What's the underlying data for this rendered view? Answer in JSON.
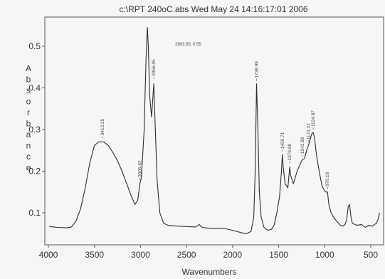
{
  "chart_data": {
    "type": "line",
    "title": "c:\\RPT 240oC.abs   Wed May 24 14:16:17:01 2006",
    "xlabel": "Wavenumbers",
    "ylabel": "Absorbance",
    "xlim": [
      4000,
      400
    ],
    "ylim": [
      0.04,
      0.56
    ],
    "x_ticks": [
      4000,
      3500,
      3000,
      2500,
      2000,
      1500,
      1000,
      500
    ],
    "y_ticks": [
      0.1,
      0.2,
      0.3,
      0.4,
      0.5
    ],
    "cursor_readout": "2903.55, 0.55",
    "peak_labels": [
      {
        "x": 3413.25,
        "y": 0.272,
        "label": "3413.25"
      },
      {
        "x": 3005.62,
        "y": 0.172,
        "label": "3005.62"
      },
      {
        "x": 2856.05,
        "y": 0.415,
        "label": "2856.05"
      },
      {
        "x": 1738.99,
        "y": 0.41,
        "label": "1738.99"
      },
      {
        "x": 1459.71,
        "y": 0.24,
        "label": "1459.71"
      },
      {
        "x": 1379.98,
        "y": 0.212,
        "label": "1379.98"
      },
      {
        "x": 1242.98,
        "y": 0.228,
        "label": "1242.98"
      },
      {
        "x": 1173.22,
        "y": 0.262,
        "label": "1173.22"
      },
      {
        "x": 1124.87,
        "y": 0.293,
        "label": "1124.87"
      },
      {
        "x": 970.18,
        "y": 0.15,
        "label": "970.18"
      }
    ],
    "series": [
      {
        "points": [
          [
            3990,
            0.067
          ],
          [
            3900,
            0.065
          ],
          [
            3800,
            0.064
          ],
          [
            3750,
            0.066
          ],
          [
            3700,
            0.08
          ],
          [
            3650,
            0.11
          ],
          [
            3600,
            0.16
          ],
          [
            3550,
            0.22
          ],
          [
            3500,
            0.262
          ],
          [
            3450,
            0.271
          ],
          [
            3400,
            0.27
          ],
          [
            3350,
            0.262
          ],
          [
            3300,
            0.245
          ],
          [
            3250,
            0.225
          ],
          [
            3200,
            0.2
          ],
          [
            3150,
            0.17
          ],
          [
            3100,
            0.14
          ],
          [
            3060,
            0.12
          ],
          [
            3030,
            0.13
          ],
          [
            3005,
            0.172
          ],
          [
            2990,
            0.185
          ],
          [
            2960,
            0.3
          ],
          [
            2940,
            0.47
          ],
          [
            2925,
            0.545
          ],
          [
            2915,
            0.5
          ],
          [
            2900,
            0.38
          ],
          [
            2880,
            0.33
          ],
          [
            2856,
            0.41
          ],
          [
            2845,
            0.34
          ],
          [
            2820,
            0.18
          ],
          [
            2790,
            0.1
          ],
          [
            2750,
            0.075
          ],
          [
            2700,
            0.07
          ],
          [
            2600,
            0.068
          ],
          [
            2500,
            0.067
          ],
          [
            2400,
            0.066
          ],
          [
            2360,
            0.072
          ],
          [
            2340,
            0.066
          ],
          [
            2300,
            0.064
          ],
          [
            2200,
            0.062
          ],
          [
            2100,
            0.063
          ],
          [
            2000,
            0.058
          ],
          [
            1900,
            0.052
          ],
          [
            1850,
            0.05
          ],
          [
            1800,
            0.055
          ],
          [
            1770,
            0.09
          ],
          [
            1755,
            0.2
          ],
          [
            1740,
            0.41
          ],
          [
            1725,
            0.3
          ],
          [
            1710,
            0.15
          ],
          [
            1690,
            0.09
          ],
          [
            1660,
            0.065
          ],
          [
            1620,
            0.058
          ],
          [
            1580,
            0.06
          ],
          [
            1550,
            0.07
          ],
          [
            1520,
            0.1
          ],
          [
            1490,
            0.14
          ],
          [
            1470,
            0.2
          ],
          [
            1460,
            0.24
          ],
          [
            1450,
            0.21
          ],
          [
            1430,
            0.17
          ],
          [
            1400,
            0.16
          ],
          [
            1380,
            0.21
          ],
          [
            1370,
            0.19
          ],
          [
            1340,
            0.17
          ],
          [
            1300,
            0.2
          ],
          [
            1260,
            0.22
          ],
          [
            1243,
            0.228
          ],
          [
            1220,
            0.23
          ],
          [
            1190,
            0.255
          ],
          [
            1175,
            0.262
          ],
          [
            1160,
            0.275
          ],
          [
            1140,
            0.29
          ],
          [
            1125,
            0.293
          ],
          [
            1110,
            0.28
          ],
          [
            1090,
            0.24
          ],
          [
            1060,
            0.2
          ],
          [
            1030,
            0.165
          ],
          [
            1000,
            0.152
          ],
          [
            985,
            0.15
          ],
          [
            970,
            0.15
          ],
          [
            955,
            0.12
          ],
          [
            930,
            0.1
          ],
          [
            900,
            0.088
          ],
          [
            870,
            0.08
          ],
          [
            830,
            0.07
          ],
          [
            800,
            0.068
          ],
          [
            780,
            0.072
          ],
          [
            760,
            0.085
          ],
          [
            745,
            0.115
          ],
          [
            730,
            0.12
          ],
          [
            715,
            0.09
          ],
          [
            700,
            0.075
          ],
          [
            650,
            0.07
          ],
          [
            600,
            0.072
          ],
          [
            560,
            0.065
          ],
          [
            520,
            0.07
          ],
          [
            480,
            0.068
          ],
          [
            440,
            0.075
          ],
          [
            420,
            0.085
          ],
          [
            405,
            0.1
          ]
        ]
      }
    ]
  }
}
